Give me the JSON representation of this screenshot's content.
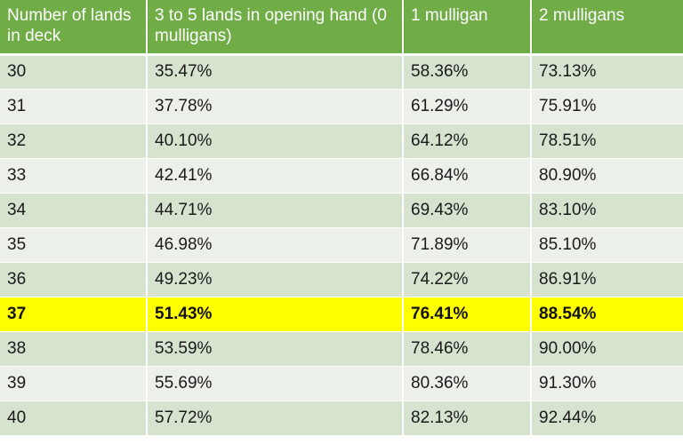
{
  "table": {
    "headers": [
      "Number of lands in deck",
      "3 to 5 lands in opening hand (0 mulligans)",
      "1 mulligan",
      "2 mulligans"
    ],
    "rows": [
      [
        "30",
        "35.47%",
        "58.36%",
        "73.13%"
      ],
      [
        "31",
        "37.78%",
        "61.29%",
        "75.91%"
      ],
      [
        "32",
        "40.10%",
        "64.12%",
        "78.51%"
      ],
      [
        "33",
        "42.41%",
        "66.84%",
        "80.90%"
      ],
      [
        "34",
        "44.71%",
        "69.43%",
        "83.10%"
      ],
      [
        "35",
        "46.98%",
        "71.89%",
        "85.10%"
      ],
      [
        "36",
        "49.23%",
        "74.22%",
        "86.91%"
      ],
      [
        "37",
        "51.43%",
        "76.41%",
        "88.54%"
      ],
      [
        "38",
        "53.59%",
        "78.46%",
        "90.00%"
      ],
      [
        "39",
        "55.69%",
        "80.36%",
        "91.30%"
      ],
      [
        "40",
        "57.72%",
        "82.13%",
        "92.44%"
      ]
    ],
    "highlight_row": "37"
  },
  "colors": {
    "header_bg": "#70ad47",
    "row_odd_bg": "#d5e3cf",
    "row_even_bg": "#ebf1e9",
    "highlight_bg": "#ffff00"
  }
}
